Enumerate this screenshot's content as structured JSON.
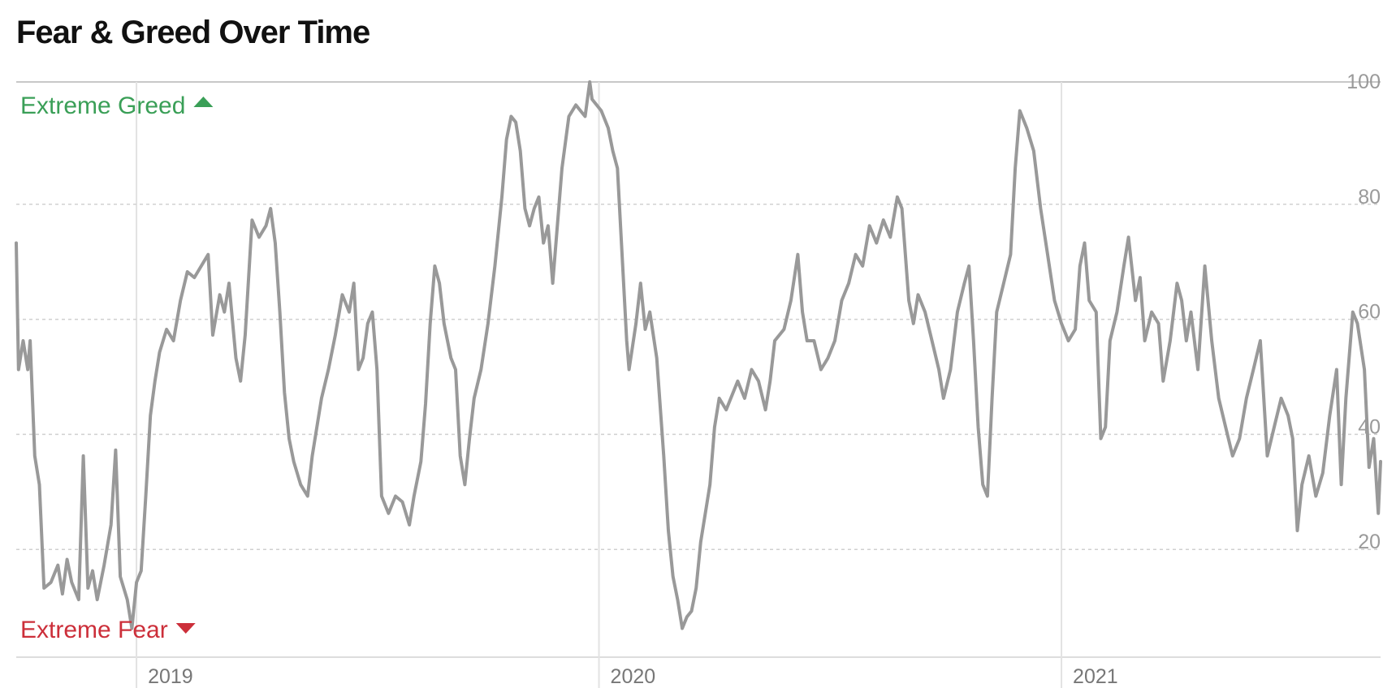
{
  "header": {
    "title": "Fear & Greed Over Time"
  },
  "chart_data": {
    "type": "line",
    "title": "Fear & Greed Over Time",
    "xlabel": "",
    "ylabel": "",
    "xlim": [
      2018.74,
      2021.69
    ],
    "ylim": [
      0,
      100
    ],
    "x_ticks": [
      {
        "value": 2019,
        "label": "2019"
      },
      {
        "value": 2020,
        "label": "2020"
      },
      {
        "value": 2021,
        "label": "2021"
      }
    ],
    "y_ticks": [
      20,
      40,
      60,
      80,
      100
    ],
    "grid": {
      "horizontal": true,
      "style": "dashed",
      "vertical_at_year_ticks": true
    },
    "annotations": [
      {
        "text": "Extreme Greed",
        "position": "top-left",
        "marker": "up-triangle"
      },
      {
        "text": "Extreme Fear",
        "position": "bottom-left",
        "marker": "down-triangle"
      }
    ],
    "colors": {
      "line": "#999999",
      "greed": "#3a9f57",
      "fear": "#cc2f3a",
      "grid": "#d0d0d0"
    },
    "series": [
      {
        "values": [
          [
            2018.74,
            72
          ],
          [
            2018.745,
            50
          ],
          [
            2018.755,
            55
          ],
          [
            2018.765,
            50
          ],
          [
            2018.77,
            55
          ],
          [
            2018.78,
            35
          ],
          [
            2018.79,
            30
          ],
          [
            2018.8,
            12
          ],
          [
            2018.815,
            13
          ],
          [
            2018.83,
            16
          ],
          [
            2018.84,
            11
          ],
          [
            2018.85,
            17
          ],
          [
            2018.86,
            13
          ],
          [
            2018.875,
            10
          ],
          [
            2018.885,
            35
          ],
          [
            2018.895,
            12
          ],
          [
            2018.905,
            15
          ],
          [
            2018.915,
            10
          ],
          [
            2018.93,
            16
          ],
          [
            2018.945,
            23
          ],
          [
            2018.955,
            36
          ],
          [
            2018.965,
            14
          ],
          [
            2018.98,
            10
          ],
          [
            2018.99,
            5
          ],
          [
            2019.0,
            13
          ],
          [
            2019.01,
            15
          ],
          [
            2019.02,
            28
          ],
          [
            2019.03,
            42
          ],
          [
            2019.04,
            48
          ],
          [
            2019.05,
            53
          ],
          [
            2019.065,
            57
          ],
          [
            2019.08,
            55
          ],
          [
            2019.095,
            62
          ],
          [
            2019.11,
            67
          ],
          [
            2019.125,
            66
          ],
          [
            2019.14,
            68
          ],
          [
            2019.155,
            70
          ],
          [
            2019.165,
            56
          ],
          [
            2019.18,
            63
          ],
          [
            2019.19,
            60
          ],
          [
            2019.2,
            65
          ],
          [
            2019.215,
            52
          ],
          [
            2019.225,
            48
          ],
          [
            2019.235,
            56
          ],
          [
            2019.25,
            76
          ],
          [
            2019.265,
            73
          ],
          [
            2019.28,
            75
          ],
          [
            2019.29,
            78
          ],
          [
            2019.3,
            72
          ],
          [
            2019.31,
            60
          ],
          [
            2019.32,
            46
          ],
          [
            2019.33,
            38
          ],
          [
            2019.34,
            34
          ],
          [
            2019.355,
            30
          ],
          [
            2019.37,
            28
          ],
          [
            2019.38,
            35
          ],
          [
            2019.39,
            40
          ],
          [
            2019.4,
            45
          ],
          [
            2019.415,
            50
          ],
          [
            2019.43,
            56
          ],
          [
            2019.445,
            63
          ],
          [
            2019.46,
            60
          ],
          [
            2019.47,
            65
          ],
          [
            2019.48,
            50
          ],
          [
            2019.49,
            52
          ],
          [
            2019.5,
            58
          ],
          [
            2019.51,
            60
          ],
          [
            2019.52,
            50
          ],
          [
            2019.53,
            28
          ],
          [
            2019.545,
            25
          ],
          [
            2019.56,
            28
          ],
          [
            2019.575,
            27
          ],
          [
            2019.59,
            23
          ],
          [
            2019.6,
            28
          ],
          [
            2019.615,
            34
          ],
          [
            2019.625,
            44
          ],
          [
            2019.635,
            58
          ],
          [
            2019.645,
            68
          ],
          [
            2019.655,
            65
          ],
          [
            2019.665,
            58
          ],
          [
            2019.68,
            52
          ],
          [
            2019.69,
            50
          ],
          [
            2019.7,
            35
          ],
          [
            2019.71,
            30
          ],
          [
            2019.72,
            38
          ],
          [
            2019.73,
            45
          ],
          [
            2019.745,
            50
          ],
          [
            2019.76,
            58
          ],
          [
            2019.775,
            68
          ],
          [
            2019.79,
            80
          ],
          [
            2019.8,
            90
          ],
          [
            2019.81,
            94
          ],
          [
            2019.82,
            93
          ],
          [
            2019.83,
            88
          ],
          [
            2019.84,
            78
          ],
          [
            2019.85,
            75
          ],
          [
            2019.86,
            78
          ],
          [
            2019.87,
            80
          ],
          [
            2019.88,
            72
          ],
          [
            2019.89,
            75
          ],
          [
            2019.9,
            65
          ],
          [
            2019.91,
            75
          ],
          [
            2019.92,
            85
          ],
          [
            2019.935,
            94
          ],
          [
            2019.95,
            96
          ],
          [
            2019.96,
            95
          ],
          [
            2019.97,
            94
          ],
          [
            2019.98,
            100
          ],
          [
            2019.985,
            97
          ],
          [
            2019.995,
            96
          ],
          [
            2020.005,
            95
          ],
          [
            2020.02,
            92
          ],
          [
            2020.03,
            88
          ],
          [
            2020.04,
            85
          ],
          [
            2020.05,
            70
          ],
          [
            2020.06,
            55
          ],
          [
            2020.065,
            50
          ],
          [
            2020.08,
            58
          ],
          [
            2020.09,
            65
          ],
          [
            2020.1,
            57
          ],
          [
            2020.11,
            60
          ],
          [
            2020.125,
            52
          ],
          [
            2020.14,
            35
          ],
          [
            2020.15,
            22
          ],
          [
            2020.16,
            14
          ],
          [
            2020.17,
            10
          ],
          [
            2020.18,
            5
          ],
          [
            2020.19,
            7
          ],
          [
            2020.2,
            8
          ],
          [
            2020.21,
            12
          ],
          [
            2020.22,
            20
          ],
          [
            2020.23,
            25
          ],
          [
            2020.24,
            30
          ],
          [
            2020.25,
            40
          ],
          [
            2020.26,
            45
          ],
          [
            2020.275,
            43
          ],
          [
            2020.285,
            45
          ],
          [
            2020.3,
            48
          ],
          [
            2020.315,
            45
          ],
          [
            2020.33,
            50
          ],
          [
            2020.345,
            48
          ],
          [
            2020.36,
            43
          ],
          [
            2020.37,
            48
          ],
          [
            2020.38,
            55
          ],
          [
            2020.4,
            57
          ],
          [
            2020.415,
            62
          ],
          [
            2020.43,
            70
          ],
          [
            2020.44,
            60
          ],
          [
            2020.45,
            55
          ],
          [
            2020.465,
            55
          ],
          [
            2020.48,
            50
          ],
          [
            2020.495,
            52
          ],
          [
            2020.51,
            55
          ],
          [
            2020.525,
            62
          ],
          [
            2020.54,
            65
          ],
          [
            2020.555,
            70
          ],
          [
            2020.57,
            68
          ],
          [
            2020.585,
            75
          ],
          [
            2020.6,
            72
          ],
          [
            2020.615,
            76
          ],
          [
            2020.63,
            73
          ],
          [
            2020.645,
            80
          ],
          [
            2020.655,
            78
          ],
          [
            2020.67,
            62
          ],
          [
            2020.68,
            58
          ],
          [
            2020.69,
            63
          ],
          [
            2020.705,
            60
          ],
          [
            2020.72,
            55
          ],
          [
            2020.735,
            50
          ],
          [
            2020.745,
            45
          ],
          [
            2020.76,
            50
          ],
          [
            2020.775,
            60
          ],
          [
            2020.79,
            65
          ],
          [
            2020.8,
            68
          ],
          [
            2020.81,
            55
          ],
          [
            2020.82,
            40
          ],
          [
            2020.83,
            30
          ],
          [
            2020.84,
            28
          ],
          [
            2020.85,
            45
          ],
          [
            2020.86,
            60
          ],
          [
            2020.875,
            65
          ],
          [
            2020.89,
            70
          ],
          [
            2020.9,
            85
          ],
          [
            2020.91,
            95
          ],
          [
            2020.925,
            92
          ],
          [
            2020.94,
            88
          ],
          [
            2020.955,
            78
          ],
          [
            2020.97,
            70
          ],
          [
            2020.985,
            62
          ],
          [
            2021.0,
            58
          ],
          [
            2021.015,
            55
          ],
          [
            2021.03,
            57
          ],
          [
            2021.04,
            68
          ],
          [
            2021.05,
            72
          ],
          [
            2021.06,
            62
          ],
          [
            2021.075,
            60
          ],
          [
            2021.085,
            38
          ],
          [
            2021.095,
            40
          ],
          [
            2021.105,
            55
          ],
          [
            2021.12,
            60
          ],
          [
            2021.135,
            68
          ],
          [
            2021.145,
            73
          ],
          [
            2021.16,
            62
          ],
          [
            2021.17,
            66
          ],
          [
            2021.18,
            55
          ],
          [
            2021.195,
            60
          ],
          [
            2021.21,
            58
          ],
          [
            2021.22,
            48
          ],
          [
            2021.235,
            55
          ],
          [
            2021.25,
            65
          ],
          [
            2021.26,
            62
          ],
          [
            2021.27,
            55
          ],
          [
            2021.28,
            60
          ],
          [
            2021.295,
            50
          ],
          [
            2021.31,
            68
          ],
          [
            2021.325,
            55
          ],
          [
            2021.34,
            45
          ],
          [
            2021.355,
            40
          ],
          [
            2021.37,
            35
          ],
          [
            2021.385,
            38
          ],
          [
            2021.4,
            45
          ],
          [
            2021.415,
            50
          ],
          [
            2021.43,
            55
          ],
          [
            2021.445,
            35
          ],
          [
            2021.46,
            40
          ],
          [
            2021.475,
            45
          ],
          [
            2021.49,
            42
          ],
          [
            2021.5,
            38
          ],
          [
            2021.51,
            22
          ],
          [
            2021.52,
            30
          ],
          [
            2021.535,
            35
          ],
          [
            2021.55,
            28
          ],
          [
            2021.565,
            32
          ],
          [
            2021.58,
            42
          ],
          [
            2021.595,
            50
          ],
          [
            2021.605,
            30
          ],
          [
            2021.615,
            45
          ],
          [
            2021.63,
            60
          ],
          [
            2021.64,
            58
          ],
          [
            2021.655,
            50
          ],
          [
            2021.665,
            33
          ],
          [
            2021.675,
            38
          ],
          [
            2021.685,
            25
          ],
          [
            2021.69,
            34
          ]
        ]
      }
    ]
  }
}
